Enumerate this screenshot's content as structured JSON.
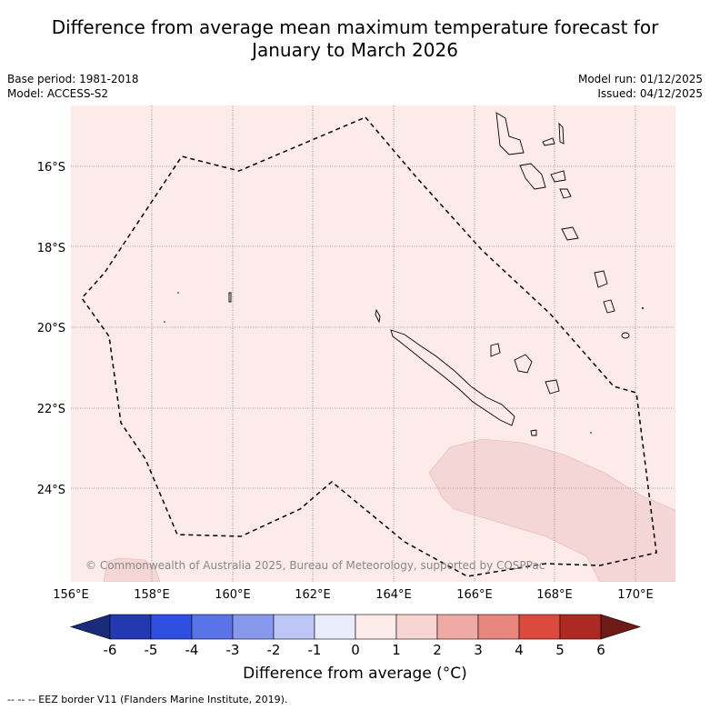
{
  "title_line1": "Difference from average mean maximum temperature forecast for",
  "title_line2": "January to March 2026",
  "base_period": "Base period: 1981-2018",
  "model": "Model: ACCESS-S2",
  "model_run": "Model run: 01/12/2025",
  "issued": "Issued: 04/12/2025",
  "lat_labels": [
    "16°S",
    "18°S",
    "20°S",
    "22°S",
    "24°S"
  ],
  "lon_labels": [
    "156°E",
    "158°E",
    "160°E",
    "162°E",
    "164°E",
    "166°E",
    "168°E",
    "170°E"
  ],
  "copyright": "© Commonwealth of Australia 2025, Bureau of Meteorology, supported by COSPPac",
  "colorbar": {
    "title": "Difference from average (°C)",
    "ticks": [
      "-6",
      "-5",
      "-4",
      "-3",
      "-2",
      "-1",
      "0",
      "1",
      "2",
      "3",
      "4",
      "5",
      "6"
    ],
    "colors": [
      "#1a2b7a",
      "#2339b0",
      "#2f4fe0",
      "#5a74e8",
      "#8799ec",
      "#bdc6f4",
      "#e8ecfb",
      "#fcebe8",
      "#f5d4d2",
      "#efaaa5",
      "#e8857d",
      "#dc4a3e",
      "#ad2a22",
      "#6e1a16"
    ]
  },
  "field_colors": {
    "background_anomaly": "#fcebe9",
    "warm_anomaly": "#f3d6d5"
  },
  "footer": "--  --  -- EEZ border V11 (Flanders Marine Institute, 2019)."
}
